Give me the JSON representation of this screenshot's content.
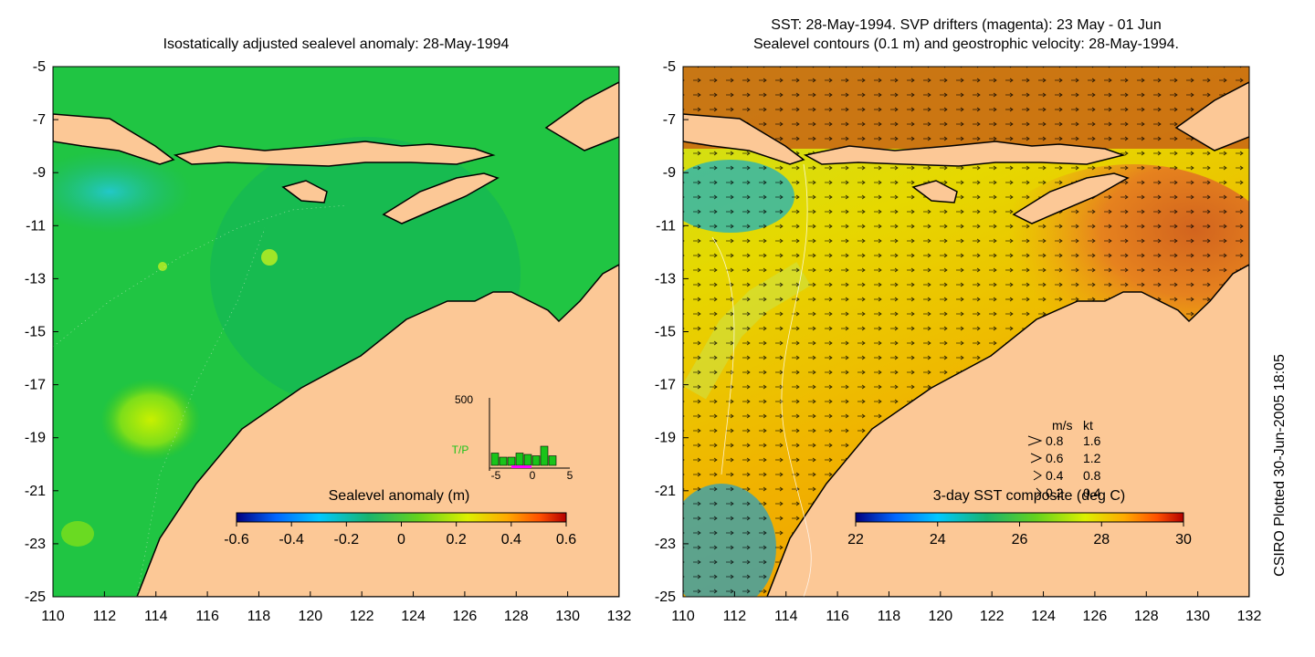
{
  "left_panel": {
    "title": "Isostatically adjusted sealevel anomaly: 28-May-1994",
    "colorbar": {
      "label": "Sealevel anomaly (m)",
      "ticks": [
        "-0.6",
        "-0.4",
        "-0.2",
        "0",
        "0.2",
        "0.4",
        "0.6"
      ],
      "colors": [
        "#00007f",
        "#0066ff",
        "#00c8ff",
        "#19b46e",
        "#64d21e",
        "#dcf000",
        "#ffaa00",
        "#ff5000",
        "#b40000"
      ]
    },
    "inset": {
      "y_max_label": "500",
      "series_label": "T/P",
      "x_ticks": [
        "-5",
        "0",
        "5"
      ],
      "bar_values": [
        0.18,
        0.12,
        0.12,
        0.18,
        0.16,
        0.14,
        0.28,
        0.14
      ],
      "series_color": "#19c419",
      "drifter_color": "#ff00ff"
    }
  },
  "right_panel": {
    "title_line1": "SST: 28-May-1994. SVP drifters (magenta): 23 May - 01 Jun",
    "title_line2": "Sealevel contours (0.1 m) and geostrophic velocity: 28-May-1994.",
    "colorbar": {
      "label": "3-day SST composite (deg C)",
      "ticks": [
        "22",
        "24",
        "26",
        "28",
        "30"
      ],
      "colors": [
        "#00007f",
        "#0066ff",
        "#00c8ff",
        "#19b46e",
        "#64d21e",
        "#dcf000",
        "#ffaa00",
        "#ff5000",
        "#b40000"
      ]
    },
    "velocity_legend": {
      "header_ms": "m/s",
      "header_kt": "kt",
      "rows": [
        {
          "ms": "0.8",
          "kt": "1.6"
        },
        {
          "ms": "0.6",
          "kt": "1.2"
        },
        {
          "ms": "0.4",
          "kt": "0.8"
        },
        {
          "ms": "0.2",
          "kt": "0.4"
        }
      ]
    }
  },
  "axes": {
    "lat_ticks": [
      "-5",
      "-7",
      "-9",
      "-11",
      "-13",
      "-15",
      "-17",
      "-19",
      "-21",
      "-23",
      "-25"
    ],
    "lon_ticks": [
      "110",
      "112",
      "114",
      "116",
      "118",
      "120",
      "122",
      "124",
      "126",
      "128",
      "130",
      "132"
    ]
  },
  "colors": {
    "land": "#fcc896",
    "coast": "#000000"
  },
  "side_note": "CSIRO Plotted 30-Jun-2005 18:05"
}
